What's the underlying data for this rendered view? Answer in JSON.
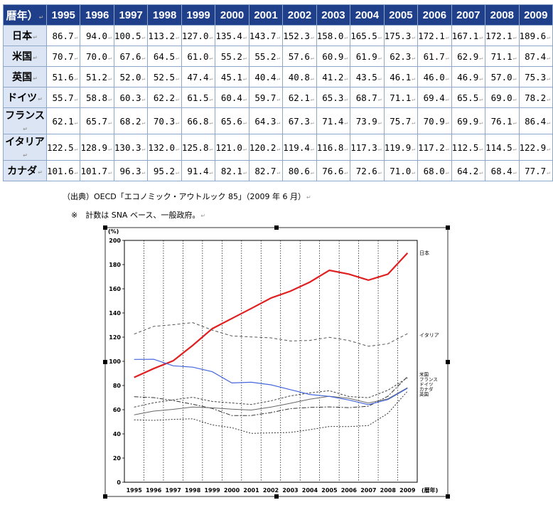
{
  "table": {
    "corner": "暦年）",
    "years": [
      "1995",
      "1996",
      "1997",
      "1998",
      "1999",
      "2000",
      "2001",
      "2002",
      "2003",
      "2004",
      "2005",
      "2006",
      "2007",
      "2008",
      "2009"
    ],
    "rows": [
      {
        "country": "日本",
        "values": [
          "86.7",
          "94.0",
          "100.5",
          "113.2",
          "127.0",
          "135.4",
          "143.7",
          "152.3",
          "158.0",
          "165.5",
          "175.3",
          "172.1",
          "167.1",
          "172.1",
          "189.6"
        ]
      },
      {
        "country": "米国",
        "values": [
          "70.7",
          "70.0",
          "67.6",
          "64.5",
          "61.0",
          "55.2",
          "55.2",
          "57.6",
          "60.9",
          "61.9",
          "62.3",
          "61.7",
          "62.9",
          "71.1",
          "87.4"
        ]
      },
      {
        "country": "英国",
        "values": [
          "51.6",
          "51.2",
          "52.0",
          "52.5",
          "47.4",
          "45.1",
          "40.4",
          "40.8",
          "41.2",
          "43.5",
          "46.1",
          "46.0",
          "46.9",
          "57.0",
          "75.3"
        ]
      },
      {
        "country": "ドイツ",
        "values": [
          "55.7",
          "58.8",
          "60.3",
          "62.2",
          "61.5",
          "60.4",
          "59.7",
          "62.1",
          "65.3",
          "68.7",
          "71.1",
          "69.4",
          "65.5",
          "69.0",
          "78.2"
        ]
      },
      {
        "country": "フランス",
        "values": [
          "62.1",
          "65.7",
          "68.2",
          "70.3",
          "66.8",
          "65.6",
          "64.3",
          "67.3",
          "71.4",
          "73.9",
          "75.7",
          "70.9",
          "69.9",
          "76.1",
          "86.4"
        ]
      },
      {
        "country": "イタリア",
        "values": [
          "122.5",
          "128.9",
          "130.3",
          "132.0",
          "125.8",
          "121.0",
          "120.2",
          "119.4",
          "116.8",
          "117.3",
          "119.9",
          "117.2",
          "112.5",
          "114.5",
          "122.9"
        ]
      },
      {
        "country": "カナダ",
        "values": [
          "101.6",
          "101.7",
          "96.3",
          "95.2",
          "91.4",
          "82.1",
          "82.7",
          "80.6",
          "76.6",
          "72.6",
          "71.0",
          "68.0",
          "64.2",
          "68.4",
          "77.7"
        ]
      }
    ]
  },
  "notes": {
    "source": "（出典）OECD「エコノミック・アウトルック 85」（2009 年 6 月）",
    "remark": "※　計数は SNA ベース、一般政府。",
    "para_mark": "↵"
  },
  "chart_data": {
    "type": "line",
    "ylabel": "(%)",
    "xlabel": "(暦年)",
    "ylim": [
      0,
      200
    ],
    "yticks": [
      0,
      20,
      40,
      60,
      80,
      100,
      120,
      140,
      160,
      180,
      200
    ],
    "x": [
      "1995",
      "1996",
      "1997",
      "1998",
      "1999",
      "2000",
      "2001",
      "2002",
      "2003",
      "2004",
      "2005",
      "2006",
      "2007",
      "2008",
      "2009"
    ],
    "series": [
      {
        "name": "日本",
        "color": "#e02020",
        "width": 2.2,
        "dash": "",
        "values": [
          86.7,
          94.0,
          100.5,
          113.2,
          127.0,
          135.4,
          143.7,
          152.3,
          158.0,
          165.5,
          175.3,
          172.1,
          167.1,
          172.1,
          189.6
        ]
      },
      {
        "name": "イタリア",
        "color": "#555555",
        "width": 1,
        "dash": "4,3",
        "values": [
          122.5,
          128.9,
          130.3,
          132.0,
          125.8,
          121.0,
          120.2,
          119.4,
          116.8,
          117.3,
          119.9,
          117.2,
          112.5,
          114.5,
          122.9
        ]
      },
      {
        "name": "米国",
        "color": "#333333",
        "width": 1,
        "dash": "6,2,2,2",
        "values": [
          70.7,
          70.0,
          67.6,
          64.5,
          61.0,
          55.2,
          55.2,
          57.6,
          60.9,
          61.9,
          62.3,
          61.7,
          62.9,
          71.1,
          87.4
        ]
      },
      {
        "name": "フランス",
        "color": "#444444",
        "width": 1,
        "dash": "3,2",
        "values": [
          62.1,
          65.7,
          68.2,
          70.3,
          66.8,
          65.6,
          64.3,
          67.3,
          71.4,
          73.9,
          75.7,
          70.9,
          69.9,
          76.1,
          86.4
        ]
      },
      {
        "name": "ドイツ",
        "color": "#666666",
        "width": 1,
        "dash": "",
        "values": [
          55.7,
          58.8,
          60.3,
          62.2,
          61.5,
          60.4,
          59.7,
          62.1,
          65.3,
          68.7,
          71.1,
          69.4,
          65.5,
          69.0,
          78.2
        ]
      },
      {
        "name": "カナダ",
        "color": "#4466dd",
        "width": 1.2,
        "dash": "",
        "values": [
          101.6,
          101.7,
          96.3,
          95.2,
          91.4,
          82.1,
          82.7,
          80.6,
          76.6,
          72.6,
          71.0,
          68.0,
          64.2,
          68.4,
          77.7
        ]
      },
      {
        "name": "英国",
        "color": "#333333",
        "width": 1,
        "dash": "2,2",
        "values": [
          51.6,
          51.2,
          52.0,
          52.5,
          47.4,
          45.1,
          40.4,
          40.8,
          41.2,
          43.5,
          46.1,
          46.0,
          46.9,
          57.0,
          75.3
        ]
      }
    ],
    "legend_labels": {
      "top": "日本",
      "mid": "イタリア",
      "bottom": [
        "米国",
        "フランス",
        "ドイツ",
        "カナダ",
        "英国"
      ]
    }
  }
}
